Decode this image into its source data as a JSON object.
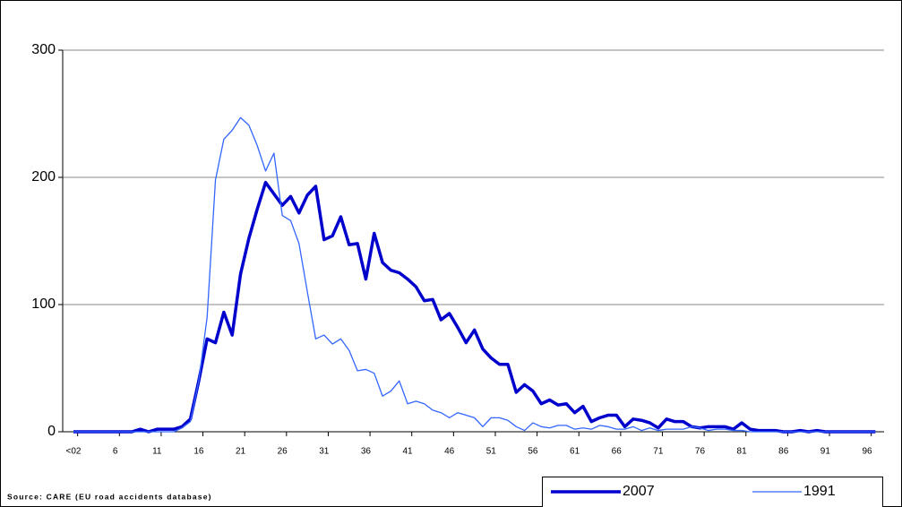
{
  "chart_data": {
    "type": "line",
    "source": "Source: CARE (EU road accidents database)",
    "categories": [
      "<02",
      null,
      null,
      null,
      null,
      "6",
      null,
      null,
      null,
      null,
      "11",
      null,
      null,
      null,
      null,
      "16",
      null,
      null,
      null,
      null,
      "21",
      null,
      null,
      null,
      null,
      "26",
      null,
      null,
      null,
      null,
      "31",
      null,
      null,
      null,
      null,
      "36",
      null,
      null,
      null,
      null,
      "41",
      null,
      null,
      null,
      null,
      "46",
      null,
      null,
      null,
      null,
      "51",
      null,
      null,
      null,
      null,
      "56",
      null,
      null,
      null,
      null,
      "61",
      null,
      null,
      null,
      null,
      "66",
      null,
      null,
      null,
      null,
      "71",
      null,
      null,
      null,
      null,
      "76",
      null,
      null,
      null,
      null,
      "81",
      null,
      null,
      null,
      null,
      "86",
      null,
      null,
      null,
      null,
      "91",
      null,
      null,
      null,
      null,
      "96",
      null
    ],
    "series": [
      {
        "name": "2007",
        "color": "#0000cc",
        "width": 3.5,
        "values": [
          0,
          0,
          0,
          0,
          0,
          0,
          0,
          0,
          2,
          0,
          2,
          2,
          2,
          4,
          10,
          40,
          73,
          70,
          94,
          76,
          124,
          152,
          175,
          196,
          187,
          178,
          185,
          172,
          186,
          193,
          151,
          154,
          169,
          147,
          148,
          120,
          156,
          133,
          127,
          125,
          120,
          114,
          103,
          104,
          88,
          93,
          82,
          70,
          80,
          65,
          58,
          53,
          53,
          31,
          37,
          32,
          22,
          25,
          21,
          22,
          15,
          20,
          8,
          11,
          13,
          13,
          4,
          10,
          9,
          7,
          3,
          10,
          8,
          8,
          4,
          3,
          4,
          4,
          4,
          2,
          7,
          2,
          1,
          1,
          1,
          0,
          0,
          1,
          0,
          1,
          0,
          0,
          0,
          0,
          0,
          0,
          0
        ]
      },
      {
        "name": "1991",
        "color": "#3366ff",
        "width": 1.3,
        "values": [
          0,
          0,
          0,
          0,
          0,
          0,
          0,
          0,
          0,
          0,
          0,
          0,
          0,
          3,
          8,
          40,
          90,
          198,
          230,
          237,
          247,
          241,
          225,
          205,
          219,
          170,
          166,
          148,
          110,
          73,
          76,
          69,
          73,
          64,
          48,
          49,
          46,
          28,
          32,
          40,
          22,
          24,
          22,
          17,
          15,
          11,
          15,
          13,
          11,
          4,
          11,
          11,
          9,
          4,
          1,
          7,
          4,
          3,
          5,
          5,
          2,
          3,
          2,
          5,
          4,
          2,
          2,
          4,
          1,
          3,
          1,
          2,
          2,
          2,
          4,
          3,
          1,
          2,
          2,
          1,
          1,
          0,
          0,
          0,
          0,
          0,
          0,
          0,
          0,
          0,
          0,
          0,
          0,
          0,
          0,
          0,
          0
        ]
      }
    ],
    "ylim": [
      0,
      300
    ],
    "yticks": [
      0,
      100,
      200,
      300
    ],
    "grid": true
  }
}
